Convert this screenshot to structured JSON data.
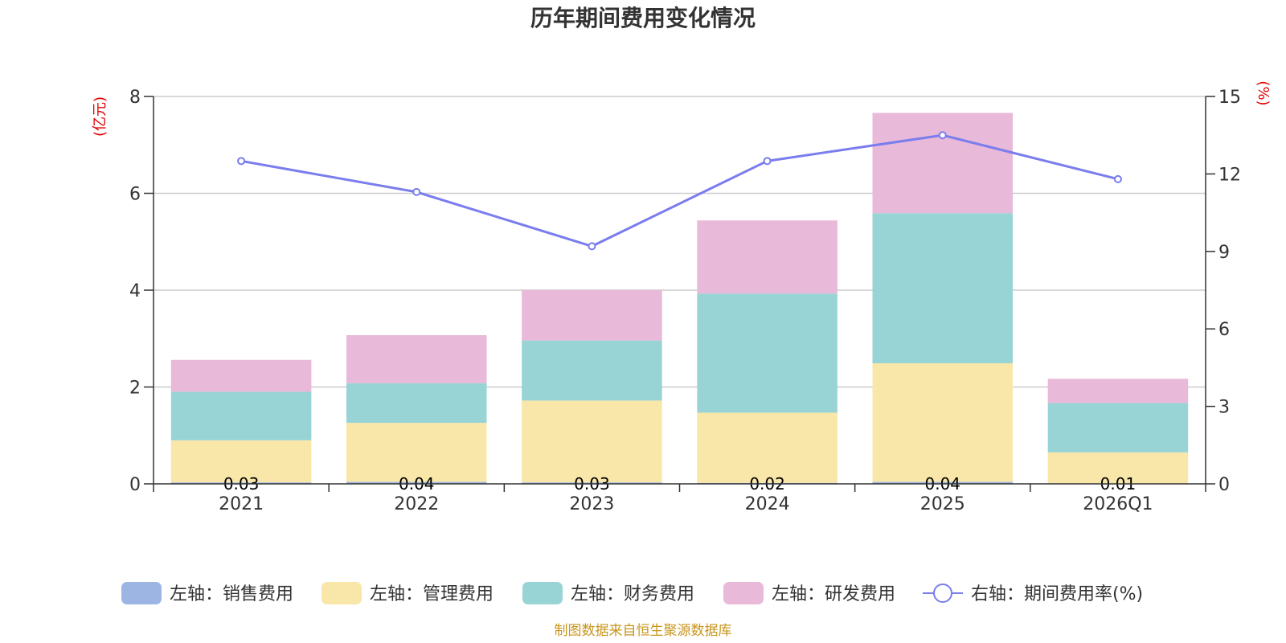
{
  "chart_data": {
    "type": "bar",
    "title": "历年期间费用变化情况",
    "categories": [
      "2021",
      "2022",
      "2023",
      "2024",
      "2025",
      "2026Q1"
    ],
    "left_axis": {
      "unit_label": "(亿元)",
      "ylim": [
        0,
        8
      ],
      "ticks": [
        "0",
        "2",
        "4",
        "6",
        "8"
      ]
    },
    "right_axis": {
      "unit_label": "(%)",
      "ylim": [
        0,
        15
      ],
      "ticks": [
        "0",
        "3",
        "6",
        "9",
        "12",
        "15"
      ]
    },
    "series": [
      {
        "name": "左轴：销售费用",
        "type": "bar",
        "color": "#9db5e2",
        "values": [
          0.03,
          0.04,
          0.03,
          0.02,
          0.04,
          0.01
        ],
        "labels": [
          "0.03",
          "0.04",
          "0.03",
          "0.02",
          "0.04",
          "0.01"
        ]
      },
      {
        "name": "左轴：管理费用",
        "type": "bar",
        "color": "#f8e7a8",
        "values": [
          0.87,
          1.22,
          1.69,
          1.45,
          2.45,
          0.64
        ]
      },
      {
        "name": "左轴：财务费用",
        "type": "bar",
        "color": "#98d4d5",
        "values": [
          1.0,
          0.82,
          1.24,
          2.46,
          3.1,
          1.02
        ]
      },
      {
        "name": "左轴：研发费用",
        "type": "bar",
        "color": "#e8b9d9",
        "values": [
          0.66,
          0.99,
          1.04,
          1.51,
          2.07,
          0.5
        ]
      },
      {
        "name": "右轴：期间费用率(%)",
        "type": "line",
        "color": "#7a7ded",
        "values": [
          12.5,
          11.3,
          9.2,
          12.5,
          13.5,
          11.8
        ]
      }
    ],
    "grid": true,
    "legend_position": "bottom"
  },
  "source_note": "制图数据来自恒生聚源数据库"
}
